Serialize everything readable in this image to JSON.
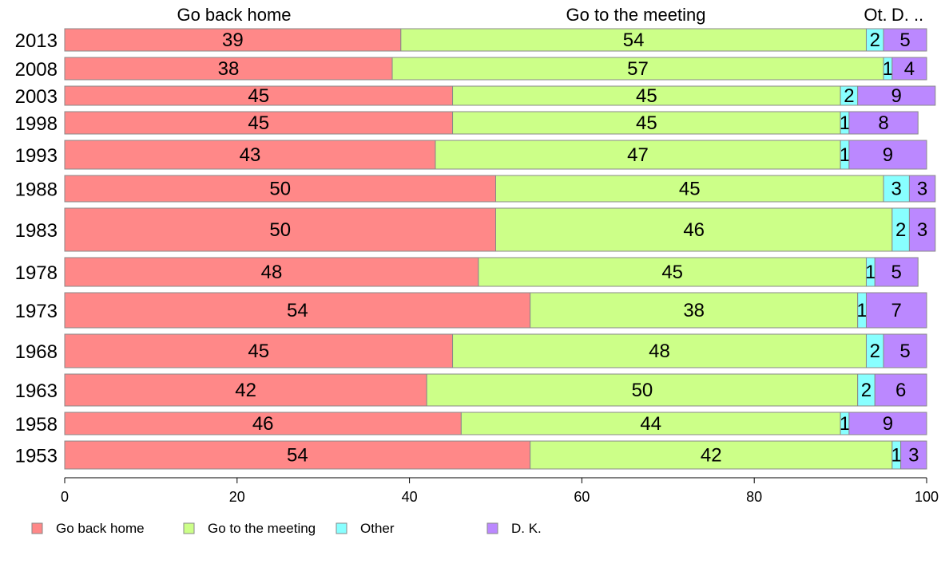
{
  "chart_data": {
    "type": "bar",
    "orientation": "horizontal",
    "stacked": true,
    "variable_width": true,
    "categories": [
      "2013",
      "2008",
      "2003",
      "1998",
      "1993",
      "1988",
      "1983",
      "1978",
      "1973",
      "1968",
      "1963",
      "1958",
      "1953"
    ],
    "series": [
      {
        "name": "Go back home",
        "color": "#ff8888",
        "values": [
          39,
          38,
          45,
          45,
          43,
          50,
          50,
          48,
          54,
          45,
          42,
          46,
          54
        ]
      },
      {
        "name": "Go to the meeting",
        "color": "#ccff88",
        "values": [
          54,
          57,
          45,
          45,
          47,
          45,
          46,
          45,
          38,
          48,
          50,
          44,
          42
        ]
      },
      {
        "name": "Other",
        "color": "#88ffff",
        "values": [
          2,
          1,
          2,
          1,
          1,
          3,
          2,
          1,
          1,
          2,
          2,
          1,
          1
        ]
      },
      {
        "name": "D. K.",
        "color": "#bb88ff",
        "values": [
          5,
          4,
          9,
          8,
          9,
          3,
          3,
          5,
          7,
          5,
          6,
          9,
          3
        ]
      }
    ],
    "column_headers": [
      "Go back home",
      "Go to the meeting",
      "Ot.",
      "D. .."
    ],
    "xlim": [
      0,
      100
    ],
    "x_ticks": [
      0,
      20,
      40,
      60,
      80,
      100
    ],
    "xlabel": "",
    "ylabel": "",
    "legend_position": "bottom",
    "grid": false
  }
}
